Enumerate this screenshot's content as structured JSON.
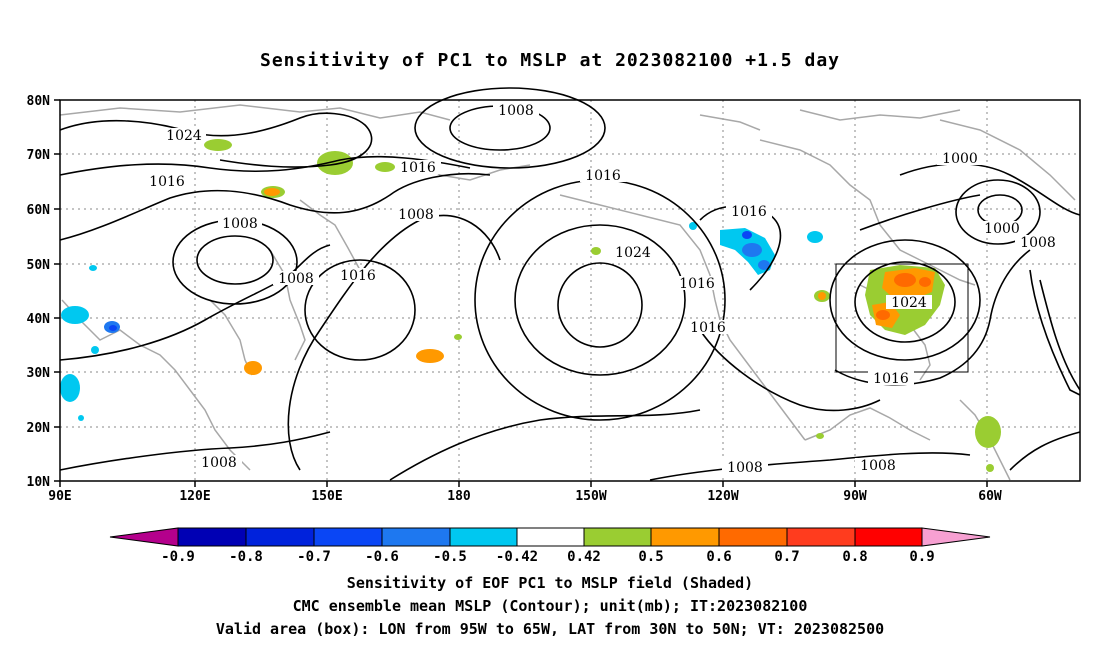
{
  "title": "Sensitivity of PC1 to MSLP at 2023082100 +1.5 day",
  "lat_ticks": [
    "80N",
    "70N",
    "60N",
    "50N",
    "40N",
    "30N",
    "20N",
    "10N"
  ],
  "lon_ticks": [
    "90E",
    "120E",
    "150E",
    "180",
    "150W",
    "120W",
    "90W",
    "60W"
  ],
  "contour_labels": [
    "1024",
    "1016",
    "1008",
    "1016",
    "1008",
    "1008",
    "1016",
    "1008",
    "1016",
    "1024",
    "1016",
    "1016",
    "1016",
    "1000",
    "1000",
    "1008",
    "1024",
    "1016",
    "1008",
    "1008",
    "1008"
  ],
  "colorbar": {
    "labels": [
      "-0.9",
      "-0.8",
      "-0.7",
      "-0.6",
      "-0.5",
      "-0.42",
      "0.42",
      "0.5",
      "0.6",
      "0.7",
      "0.8",
      "0.9"
    ],
    "colors": [
      "#b4008c",
      "#0000b4",
      "#0022dc",
      "#0a46f5",
      "#1e78f0",
      "#00c8f0",
      "#ffffff",
      "#9acd32",
      "#ff9900",
      "#ff6a00",
      "#ff3c1e",
      "#ff0000",
      "#f7a0d2"
    ]
  },
  "caption": {
    "line1": "Sensitivity of EOF PC1 to MSLP field (Shaded)",
    "line2": "CMC ensemble mean MSLP (Contour); unit(mb); IT:2023082100",
    "line3": "Valid area (box): LON from 95W to 65W, LAT from 30N to 50N; VT: 2023082500"
  }
}
